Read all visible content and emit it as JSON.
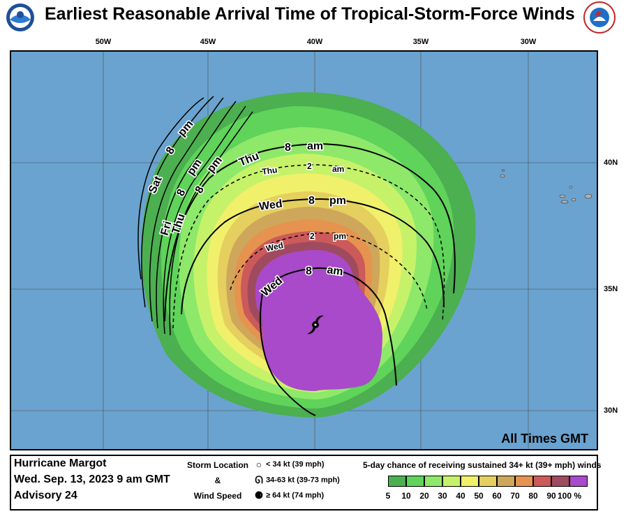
{
  "title": "Earliest Reasonable Arrival Time of Tropical-Storm-Force Winds",
  "logos": {
    "left": "NOAA",
    "right": "NATIONAL WEATHER SERVICE"
  },
  "axes": {
    "longitudes": [
      "50W",
      "45W",
      "40W",
      "35W",
      "30W"
    ],
    "latitudes": [
      "40N",
      "35N",
      "30N"
    ]
  },
  "map_note": "All Times GMT",
  "contour_labels": {
    "wed_8am": [
      "Wed",
      "8",
      "am"
    ],
    "wed_2pm": [
      "Wed",
      "2",
      "pm"
    ],
    "wed_8pm": [
      "Wed",
      "8",
      "pm"
    ],
    "thu_2am": [
      "Thu",
      "2",
      "am"
    ],
    "thu_8am": [
      "Thu",
      "8",
      "am"
    ],
    "thu_8pm": [
      "Thu",
      "8",
      "pm"
    ],
    "fri_8pm": [
      "Fri",
      "8",
      "pm"
    ],
    "sat_8pm": [
      "Sat",
      "8",
      "pm"
    ]
  },
  "storm": {
    "name": "Hurricane Margot",
    "datetime": "Wed. Sep. 13, 2023  9 am GMT",
    "advisory": "Advisory 24"
  },
  "storm_location_legend": {
    "heading": [
      "Storm Location",
      "&",
      "Wind Speed"
    ],
    "items": [
      {
        "symbol": "○",
        "label": "< 34 kt (39 mph)"
      },
      {
        "symbol": "ᘏ",
        "label": "34-63 kt (39-73 mph)"
      },
      {
        "symbol": "⚈",
        "label": "≥ 64 kt (74 mph)"
      }
    ]
  },
  "probability_legend": {
    "title": "5-day chance of receiving sustained 34+ kt (39+ mph) winds",
    "colors": [
      "#4caf50",
      "#5fd35a",
      "#8ee86a",
      "#c6f26a",
      "#f1f06a",
      "#e5cf5e",
      "#cfa75b",
      "#e6934f",
      "#cc5a5a",
      "#a04a5f",
      "#a84ac9"
    ],
    "ticks": [
      "5",
      "10",
      "20",
      "30",
      "40",
      "50",
      "60",
      "70",
      "80",
      "90",
      "100 %"
    ]
  }
}
